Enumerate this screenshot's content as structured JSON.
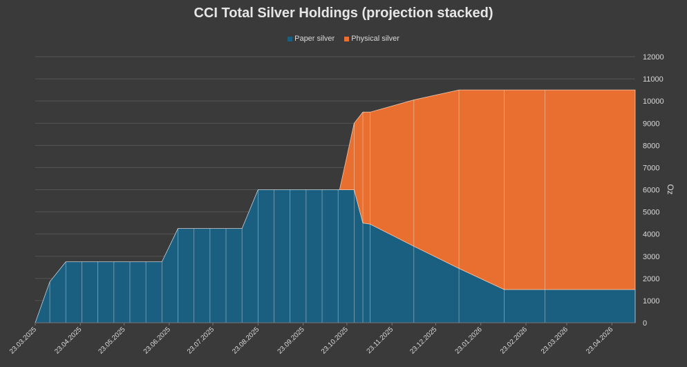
{
  "chart_data": {
    "type": "area",
    "title": "CCI Total Silver Holdings (projection stacked)",
    "ylabel": "Oz",
    "xlabel": "",
    "ylim": [
      0,
      12000
    ],
    "yticks": [
      0,
      1000,
      2000,
      3000,
      4000,
      5000,
      6000,
      7000,
      8000,
      9000,
      10000,
      11000,
      12000
    ],
    "ytick_labels": [
      "0",
      "1000",
      "2000",
      "3000",
      "4000",
      "5000",
      "6000",
      "7000",
      "8000",
      "9000",
      "10000",
      "11000",
      "12000"
    ],
    "x_tick_labels": [
      "23.03.2025",
      "23.04.2025",
      "23.05.2025",
      "23.06.2025",
      "23.07.2025",
      "23.08.2025",
      "23.09.2025",
      "23.10.2025",
      "23.11.2025",
      "23.12.2025",
      "23.01.2026",
      "23.02.2026",
      "23.03.2026",
      "23.04.2026"
    ],
    "x_tick_positions": [
      0,
      31,
      61,
      92,
      122,
      153,
      184,
      214,
      245,
      275,
      306,
      337,
      365,
      396
    ],
    "x_end": 412,
    "legend_position": "top-center",
    "grid": true,
    "series": [
      {
        "name": "Paper silver",
        "color": "#1a5e80",
        "points": [
          {
            "x": 0,
            "y": 0
          },
          {
            "x": 10,
            "y": 1850
          },
          {
            "x": 21,
            "y": 2750
          },
          {
            "x": 32,
            "y": 2750
          },
          {
            "x": 43,
            "y": 2750
          },
          {
            "x": 54,
            "y": 2750
          },
          {
            "x": 65,
            "y": 2750
          },
          {
            "x": 76,
            "y": 2750
          },
          {
            "x": 87,
            "y": 2750
          },
          {
            "x": 98,
            "y": 4250
          },
          {
            "x": 109,
            "y": 4250
          },
          {
            "x": 120,
            "y": 4250
          },
          {
            "x": 131,
            "y": 4250
          },
          {
            "x": 142,
            "y": 4250
          },
          {
            "x": 153,
            "y": 6000
          },
          {
            "x": 164,
            "y": 6000
          },
          {
            "x": 175,
            "y": 6000
          },
          {
            "x": 186,
            "y": 6000
          },
          {
            "x": 197,
            "y": 6000
          },
          {
            "x": 208,
            "y": 6000
          },
          {
            "x": 209,
            "y": 6000
          },
          {
            "x": 219,
            "y": 6000
          },
          {
            "x": 225,
            "y": 4500
          },
          {
            "x": 230,
            "y": 4450
          },
          {
            "x": 260,
            "y": 3450
          },
          {
            "x": 291,
            "y": 2450
          },
          {
            "x": 322,
            "y": 1500
          },
          {
            "x": 350,
            "y": 1500
          },
          {
            "x": 412,
            "y": 1500
          }
        ]
      },
      {
        "name": "Physical silver",
        "color": "#e86f2f",
        "points": [
          {
            "x": 209,
            "y": 0
          },
          {
            "x": 219,
            "y": 3000
          },
          {
            "x": 225,
            "y": 5000
          },
          {
            "x": 230,
            "y": 5050
          },
          {
            "x": 260,
            "y": 6600
          },
          {
            "x": 291,
            "y": 8050
          },
          {
            "x": 322,
            "y": 9000
          },
          {
            "x": 350,
            "y": 9000
          },
          {
            "x": 412,
            "y": 9000
          }
        ]
      }
    ],
    "vertical_dividers_x": [
      10,
      21,
      32,
      43,
      54,
      65,
      76,
      87,
      98,
      109,
      120,
      131,
      142,
      153,
      164,
      175,
      186,
      197,
      208,
      219,
      225,
      230,
      260,
      291,
      322,
      350
    ]
  }
}
